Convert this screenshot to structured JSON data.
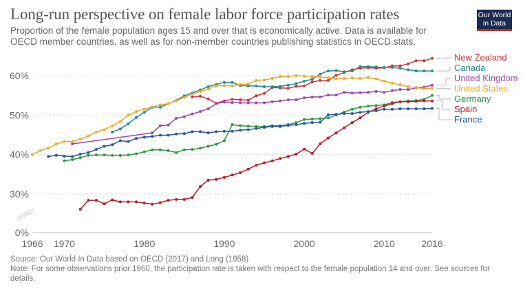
{
  "header": {
    "title": "Long-run perspective on female labor force participation rates",
    "subtitle": "Proportion of the female population ages 15 and over that is economically active. Data is available for OECD member countries, as well as for non-member countries publishing statistics in OECD.stats.",
    "logo_line1": "Our World",
    "logo_line2": "in Data"
  },
  "footer": {
    "source": "Source: Our World In Data based on OECD (2017) and Long (1958)",
    "note": "Note: For some observations prior 1960, the participation rate is taken with respect to the female population 14 and over. See sources for details."
  },
  "chart_data": {
    "type": "line",
    "title": "Long-run perspective on female labor force participation rates",
    "xlabel": "",
    "ylabel": "",
    "xlim": [
      1966,
      2016
    ],
    "ylim": [
      0,
      65
    ],
    "y_axis_break": [
      0,
      25
    ],
    "grid": true,
    "legend_placement": "right",
    "x_ticks": [
      "1966",
      "1970",
      "1980",
      "1990",
      "2000",
      "2010",
      "2016"
    ],
    "x_tick_values": [
      1966,
      1970,
      1980,
      1990,
      2000,
      2010,
      2016
    ],
    "y_ticks": [
      "0%",
      "30%",
      "40%",
      "50%",
      "60%"
    ],
    "y_tick_values": [
      0,
      30,
      40,
      50,
      60
    ],
    "series": [
      {
        "name": "New Zealand",
        "color": "#e02b2b",
        "x": [
          1986,
          1987,
          1988,
          1989,
          1990,
          1991,
          1992,
          1993,
          1994,
          1995,
          1996,
          1997,
          1998,
          1999,
          2000,
          2001,
          2002,
          2003,
          2004,
          2005,
          2006,
          2007,
          2008,
          2009,
          2010,
          2011,
          2012,
          2013,
          2014,
          2015,
          2016
        ],
        "values": [
          54.6,
          54.8,
          54.1,
          53.0,
          53.6,
          54.0,
          53.9,
          53.8,
          54.9,
          55.5,
          57.0,
          56.9,
          56.8,
          57.3,
          57.4,
          58.4,
          58.8,
          58.8,
          60.1,
          60.8,
          61.5,
          61.9,
          62.0,
          61.9,
          62.0,
          62.5,
          62.5,
          63.0,
          63.8,
          63.8,
          64.4
        ]
      },
      {
        "name": "Canada",
        "color": "#1f8c93",
        "x": [
          1976,
          1977,
          1978,
          1979,
          1980,
          1981,
          1982,
          1983,
          1984,
          1985,
          1986,
          1987,
          1988,
          1989,
          1990,
          1991,
          1992,
          1993,
          1994,
          1995,
          1996,
          1997,
          1998,
          1999,
          2000,
          2001,
          2002,
          2003,
          2004,
          2005,
          2006,
          2007,
          2008,
          2009,
          2010,
          2011,
          2012,
          2013,
          2014,
          2015,
          2016
        ],
        "values": [
          45.7,
          46.5,
          47.8,
          49.4,
          50.7,
          52.0,
          52.0,
          52.9,
          53.7,
          54.9,
          55.6,
          56.4,
          57.2,
          57.8,
          58.3,
          58.3,
          57.5,
          57.4,
          57.4,
          57.2,
          57.2,
          57.3,
          57.6,
          58.0,
          58.6,
          59.1,
          60.4,
          61.2,
          61.3,
          61.0,
          61.2,
          62.3,
          62.3,
          62.2,
          62.1,
          62.1,
          61.9,
          61.5,
          61.2,
          61.2,
          61.2
        ]
      },
      {
        "name": "United Kingdom",
        "color": "#9a44b8",
        "x": [
          1971,
          1981,
          1982,
          1983,
          1984,
          1985,
          1986,
          1987,
          1988,
          1989,
          1990,
          1991,
          1992,
          1993,
          1994,
          1995,
          1996,
          1997,
          1998,
          1999,
          2000,
          2001,
          2002,
          2003,
          2004,
          2005,
          2006,
          2007,
          2008,
          2009,
          2010,
          2011,
          2012,
          2013,
          2014,
          2015,
          2016
        ],
        "values": [
          42.7,
          45.5,
          47.3,
          47.5,
          49.2,
          49.6,
          50.3,
          50.9,
          51.6,
          52.9,
          53.3,
          53.2,
          53.1,
          53.1,
          53.1,
          53.1,
          53.4,
          53.6,
          53.9,
          53.9,
          54.4,
          54.6,
          54.6,
          55.1,
          55.1,
          55.8,
          55.6,
          55.7,
          55.8,
          56.0,
          55.8,
          56.2,
          56.5,
          56.5,
          56.9,
          57.1,
          57.6
        ]
      },
      {
        "name": "United States",
        "color": "#f5a623",
        "x": [
          1966,
          1967,
          1968,
          1969,
          1970,
          1971,
          1972,
          1973,
          1974,
          1975,
          1976,
          1977,
          1978,
          1979,
          1980,
          1981,
          1982,
          1983,
          1984,
          1985,
          1986,
          1987,
          1988,
          1989,
          1990,
          1991,
          1992,
          1993,
          1994,
          1995,
          1996,
          1997,
          1998,
          1999,
          2000,
          2001,
          2002,
          2003,
          2004,
          2005,
          2006,
          2007,
          2008,
          2009,
          2010,
          2011,
          2012,
          2013,
          2014,
          2015,
          2016
        ],
        "values": [
          40.0,
          41.0,
          41.6,
          42.7,
          43.3,
          43.3,
          43.9,
          44.7,
          45.7,
          46.3,
          47.3,
          48.4,
          50.0,
          50.9,
          51.5,
          52.1,
          52.6,
          52.9,
          53.6,
          54.5,
          55.3,
          56.0,
          56.6,
          57.4,
          57.5,
          57.4,
          57.8,
          57.9,
          58.8,
          58.9,
          59.3,
          59.8,
          59.8,
          60.0,
          59.9,
          59.8,
          59.6,
          59.5,
          59.2,
          59.3,
          59.4,
          59.3,
          59.5,
          59.2,
          58.6,
          58.1,
          57.7,
          57.2,
          57.0,
          56.7,
          56.8
        ]
      },
      {
        "name": "Germany",
        "color": "#2b9a3a",
        "x": [
          1970,
          1971,
          1972,
          1973,
          1974,
          1975,
          1976,
          1977,
          1978,
          1979,
          1980,
          1981,
          1982,
          1983,
          1984,
          1985,
          1986,
          1987,
          1988,
          1989,
          1990,
          1991,
          1992,
          1993,
          1994,
          1995,
          1996,
          1997,
          1998,
          1999,
          2000,
          2001,
          2002,
          2003,
          2004,
          2005,
          2006,
          2007,
          2008,
          2009,
          2010,
          2011,
          2012,
          2013,
          2014,
          2015,
          2016
        ],
        "values": [
          38.4,
          38.7,
          39.2,
          39.8,
          39.9,
          39.9,
          39.8,
          39.8,
          39.9,
          40.2,
          40.7,
          41.2,
          41.2,
          41.0,
          40.5,
          41.2,
          41.3,
          41.6,
          42.1,
          42.6,
          43.5,
          47.6,
          47.3,
          47.2,
          47.1,
          47.1,
          47.3,
          47.3,
          47.6,
          48.1,
          48.9,
          49.0,
          49.1,
          49.3,
          50.0,
          50.8,
          51.5,
          52.0,
          52.3,
          52.4,
          52.6,
          53.2,
          53.4,
          53.6,
          53.7,
          54.0,
          55.0
        ]
      },
      {
        "name": "Spain",
        "color": "#c8141c",
        "x": [
          1972,
          1973,
          1974,
          1975,
          1976,
          1977,
          1978,
          1979,
          1980,
          1981,
          1982,
          1983,
          1984,
          1985,
          1986,
          1987,
          1988,
          1989,
          1990,
          1991,
          1992,
          1993,
          1994,
          1995,
          1996,
          1997,
          1998,
          1999,
          2000,
          2001,
          2002,
          2003,
          2004,
          2005,
          2006,
          2007,
          2008,
          2009,
          2010,
          2011,
          2012,
          2013,
          2014,
          2015,
          2016
        ],
        "values": [
          26.1,
          28.4,
          28.4,
          27.5,
          28.5,
          28.0,
          28.0,
          28.0,
          27.7,
          27.4,
          27.8,
          28.4,
          28.6,
          28.6,
          29.1,
          31.9,
          33.5,
          33.7,
          34.2,
          34.8,
          35.4,
          36.3,
          37.3,
          37.9,
          38.4,
          39.0,
          39.5,
          40.1,
          41.4,
          40.3,
          42.7,
          44.2,
          45.5,
          46.8,
          48.1,
          49.3,
          50.7,
          51.6,
          52.3,
          52.9,
          53.4,
          53.4,
          53.5,
          53.6,
          53.6
        ]
      },
      {
        "name": "France",
        "color": "#2453a6",
        "x": [
          1968,
          1969,
          1970,
          1971,
          1972,
          1973,
          1974,
          1975,
          1976,
          1977,
          1978,
          1979,
          1980,
          1981,
          1982,
          1983,
          1984,
          1985,
          1986,
          1987,
          1988,
          1989,
          1990,
          1991,
          1992,
          1993,
          1994,
          1995,
          1996,
          1997,
          1998,
          1999,
          2000,
          2001,
          2002,
          2003,
          2004,
          2005,
          2006,
          2007,
          2008,
          2009,
          2010,
          2011,
          2012,
          2013,
          2014,
          2015,
          2016
        ],
        "values": [
          39.5,
          39.8,
          39.6,
          39.5,
          40.1,
          40.5,
          41.3,
          42.1,
          42.5,
          43.5,
          43.3,
          44.1,
          44.4,
          44.6,
          44.9,
          44.9,
          45.2,
          45.3,
          45.8,
          45.8,
          45.5,
          45.8,
          45.9,
          45.9,
          46.2,
          46.3,
          46.6,
          46.9,
          47.1,
          47.1,
          47.4,
          47.6,
          47.9,
          48.1,
          48.2,
          50.1,
          50.2,
          50.4,
          50.4,
          50.7,
          50.9,
          51.1,
          51.5,
          51.5,
          51.6,
          51.6,
          51.6,
          51.6,
          51.7
        ]
      }
    ],
    "legend": [
      {
        "name": "New Zealand",
        "color": "#e02b2b"
      },
      {
        "name": "Canada",
        "color": "#1f8c93"
      },
      {
        "name": "United Kingdom",
        "color": "#9a44b8"
      },
      {
        "name": "United States",
        "color": "#f5a623"
      },
      {
        "name": "Germany",
        "color": "#2b9a3a"
      },
      {
        "name": "Spain",
        "color": "#c8141c"
      },
      {
        "name": "France",
        "color": "#2453a6"
      }
    ]
  }
}
